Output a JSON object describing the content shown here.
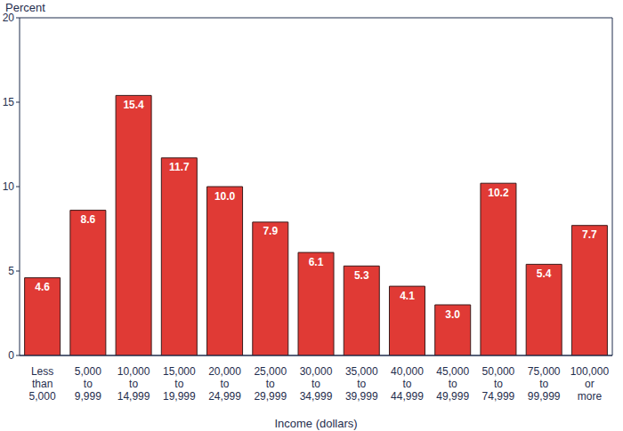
{
  "chart_data": {
    "type": "bar",
    "y_label": "Percent",
    "x_label": "Income (dollars)",
    "categories": [
      "Less than 5,000",
      "5,000 to 9,999",
      "10,000 to 14,999",
      "15,000 to 19,999",
      "20,000 to 24,999",
      "25,000 to 29,999",
      "30,000 to 34,999",
      "35,000 to 39,999",
      "40,000 to 44,999",
      "45,000 to 49,999",
      "50,000 to 74,999",
      "75,000 to 99,999",
      "100,000 or more"
    ],
    "values": [
      4.6,
      8.6,
      15.4,
      11.7,
      10.0,
      7.9,
      6.1,
      5.3,
      4.1,
      3.0,
      10.2,
      5.4,
      7.7
    ],
    "value_labels": [
      "4.6",
      "8.6",
      "15.4",
      "11.7",
      "10.0",
      "7.9",
      "6.1",
      "5.3",
      "4.1",
      "3.0",
      "10.2",
      "5.4",
      "7.7"
    ],
    "color": "#e03a35",
    "ylim": [
      0,
      20
    ],
    "yticks": [
      0,
      5,
      10,
      15,
      20
    ],
    "grid": true,
    "data_labels": true
  }
}
